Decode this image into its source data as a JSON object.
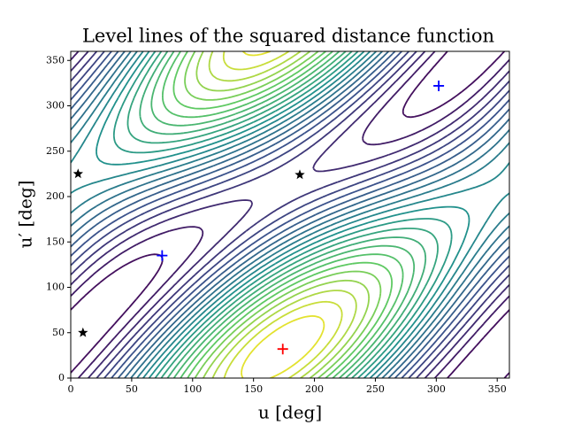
{
  "chart_data": {
    "type": "contour",
    "title": "Level lines of the squared distance function",
    "x_label": "u [deg]",
    "y_label": "u′ [deg]",
    "xlim": [
      0,
      360
    ],
    "ylim": [
      0,
      360
    ],
    "xticks": [
      0,
      50,
      100,
      150,
      200,
      250,
      300,
      350
    ],
    "yticks": [
      0,
      50,
      100,
      150,
      200,
      250,
      300,
      350
    ],
    "series": [
      {
        "marker": "plus",
        "color": "#0000ff",
        "x": [
          75,
          302
        ],
        "values": [
          135,
          322
        ]
      },
      {
        "marker": "plus",
        "color": "#ff0000",
        "x": [
          174
        ],
        "values": [
          32
        ]
      },
      {
        "marker": "star",
        "color": "#000000",
        "x": [
          6,
          10,
          188
        ],
        "values": [
          225,
          50,
          224
        ]
      }
    ]
  }
}
